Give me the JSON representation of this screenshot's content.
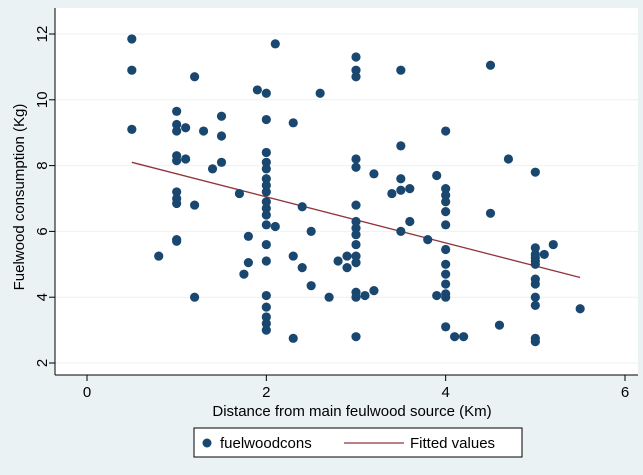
{
  "colors": {
    "outer_bg": "#eaf2f3",
    "plot_bg": "#ffffff",
    "grid": "#eaf2f3",
    "marker": "#1a476f",
    "fit_line": "#90353b"
  },
  "chart_data": {
    "type": "scatter",
    "xlabel": "Distance from main feulwood source (Km)",
    "ylabel": "Fuelwood consumption (Kg)",
    "xlim": [
      0,
      6
    ],
    "ylim": [
      2,
      12
    ],
    "xticks": [
      0,
      2,
      4,
      6
    ],
    "yticks": [
      2,
      4,
      6,
      8,
      10,
      12
    ],
    "grid": "horizontal",
    "legend": "bottom",
    "series": [
      {
        "name": "fuelwoodcons",
        "kind": "scatter",
        "points": [
          [
            0.5,
            11.85
          ],
          [
            0.5,
            10.9
          ],
          [
            0.5,
            9.1
          ],
          [
            0.8,
            5.25
          ],
          [
            1.0,
            9.65
          ],
          [
            1.0,
            9.25
          ],
          [
            1.0,
            9.05
          ],
          [
            1.0,
            8.3
          ],
          [
            1.0,
            8.15
          ],
          [
            1.0,
            7.2
          ],
          [
            1.0,
            7.0
          ],
          [
            1.0,
            6.85
          ],
          [
            1.0,
            5.75
          ],
          [
            1.0,
            5.7
          ],
          [
            1.1,
            9.15
          ],
          [
            1.1,
            8.2
          ],
          [
            1.2,
            10.7
          ],
          [
            1.2,
            6.8
          ],
          [
            1.2,
            4.0
          ],
          [
            1.3,
            9.05
          ],
          [
            1.4,
            7.9
          ],
          [
            1.5,
            9.5
          ],
          [
            1.5,
            8.9
          ],
          [
            1.5,
            8.1
          ],
          [
            1.7,
            7.15
          ],
          [
            1.75,
            4.7
          ],
          [
            1.8,
            5.85
          ],
          [
            1.8,
            5.05
          ],
          [
            1.9,
            10.3
          ],
          [
            2.0,
            10.2
          ],
          [
            2.0,
            9.4
          ],
          [
            2.0,
            8.4
          ],
          [
            2.0,
            8.1
          ],
          [
            2.0,
            7.9
          ],
          [
            2.0,
            7.6
          ],
          [
            2.0,
            7.4
          ],
          [
            2.0,
            7.2
          ],
          [
            2.0,
            6.9
          ],
          [
            2.0,
            6.7
          ],
          [
            2.0,
            6.5
          ],
          [
            2.0,
            6.2
          ],
          [
            2.0,
            5.6
          ],
          [
            2.0,
            5.1
          ],
          [
            2.0,
            4.05
          ],
          [
            2.0,
            3.7
          ],
          [
            2.0,
            3.4
          ],
          [
            2.0,
            3.2
          ],
          [
            2.0,
            3.0
          ],
          [
            2.1,
            11.7
          ],
          [
            2.1,
            6.15
          ],
          [
            2.3,
            9.3
          ],
          [
            2.3,
            5.25
          ],
          [
            2.3,
            2.75
          ],
          [
            2.4,
            6.75
          ],
          [
            2.4,
            4.9
          ],
          [
            2.5,
            6.0
          ],
          [
            2.5,
            4.35
          ],
          [
            2.6,
            10.2
          ],
          [
            2.7,
            4.0
          ],
          [
            2.8,
            5.1
          ],
          [
            2.9,
            5.25
          ],
          [
            2.9,
            4.9
          ],
          [
            3.0,
            11.3
          ],
          [
            3.0,
            10.9
          ],
          [
            3.0,
            10.7
          ],
          [
            3.0,
            8.2
          ],
          [
            3.0,
            7.95
          ],
          [
            3.0,
            6.8
          ],
          [
            3.0,
            6.3
          ],
          [
            3.0,
            6.1
          ],
          [
            3.0,
            5.9
          ],
          [
            3.0,
            5.6
          ],
          [
            3.0,
            5.25
          ],
          [
            3.0,
            5.05
          ],
          [
            3.0,
            4.15
          ],
          [
            3.0,
            4.0
          ],
          [
            3.0,
            2.8
          ],
          [
            3.1,
            4.05
          ],
          [
            3.2,
            7.75
          ],
          [
            3.2,
            4.2
          ],
          [
            3.4,
            7.15
          ],
          [
            3.5,
            10.9
          ],
          [
            3.5,
            8.6
          ],
          [
            3.5,
            7.6
          ],
          [
            3.5,
            7.25
          ],
          [
            3.5,
            6.0
          ],
          [
            3.6,
            7.3
          ],
          [
            3.6,
            6.3
          ],
          [
            3.8,
            5.75
          ],
          [
            3.9,
            7.7
          ],
          [
            3.9,
            4.05
          ],
          [
            4.0,
            9.05
          ],
          [
            4.0,
            7.3
          ],
          [
            4.0,
            7.1
          ],
          [
            4.0,
            6.9
          ],
          [
            4.0,
            6.6
          ],
          [
            4.0,
            6.2
          ],
          [
            4.0,
            5.45
          ],
          [
            4.0,
            5.0
          ],
          [
            4.0,
            4.7
          ],
          [
            4.0,
            4.4
          ],
          [
            4.0,
            4.1
          ],
          [
            4.0,
            4.0
          ],
          [
            4.0,
            3.1
          ],
          [
            4.1,
            2.8
          ],
          [
            4.2,
            2.8
          ],
          [
            4.5,
            11.05
          ],
          [
            4.5,
            6.55
          ],
          [
            4.6,
            3.15
          ],
          [
            4.7,
            8.2
          ],
          [
            5.0,
            7.8
          ],
          [
            5.0,
            5.5
          ],
          [
            5.0,
            5.3
          ],
          [
            5.0,
            5.2
          ],
          [
            5.0,
            5.1
          ],
          [
            5.0,
            5.0
          ],
          [
            5.0,
            4.55
          ],
          [
            5.0,
            4.4
          ],
          [
            5.0,
            4.0
          ],
          [
            5.0,
            3.75
          ],
          [
            5.0,
            2.75
          ],
          [
            5.0,
            2.65
          ],
          [
            5.1,
            5.3
          ],
          [
            5.2,
            5.6
          ],
          [
            5.5,
            3.65
          ]
        ]
      },
      {
        "name": "Fitted values",
        "kind": "line",
        "points": [
          [
            0.5,
            8.1
          ],
          [
            5.5,
            4.6
          ]
        ]
      }
    ]
  }
}
